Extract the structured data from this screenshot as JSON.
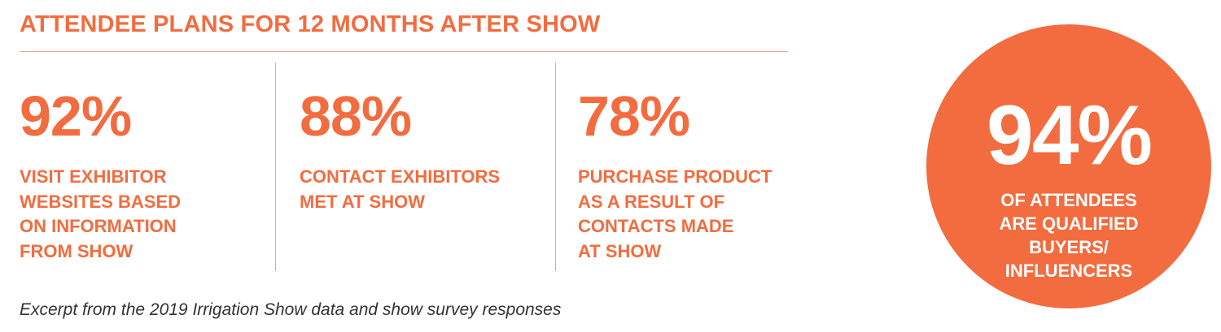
{
  "heading": "ATTENDEE PLANS FOR 12 MONTHS AFTER SHOW",
  "stats": [
    {
      "value": "92%",
      "description": "VISIT EXHIBITOR\nWEBSITES BASED\nON INFORMATION\nFROM SHOW"
    },
    {
      "value": "88%",
      "description": "CONTACT EXHIBITORS\nMET AT SHOW"
    },
    {
      "value": "78%",
      "description": "PURCHASE PRODUCT\nAS A RESULT OF\nCONTACTS MADE\nAT SHOW"
    }
  ],
  "highlight": {
    "value": "94%",
    "description": "OF ATTENDEES\nARE QUALIFIED\nBUYERS/\nINFLUENCERS"
  },
  "caption": "Excerpt from the 2019 Irrigation Show data and show survey responses",
  "colors": {
    "accent": "#f26c3f",
    "rule": "#f4a487",
    "caption_text": "#333333"
  }
}
